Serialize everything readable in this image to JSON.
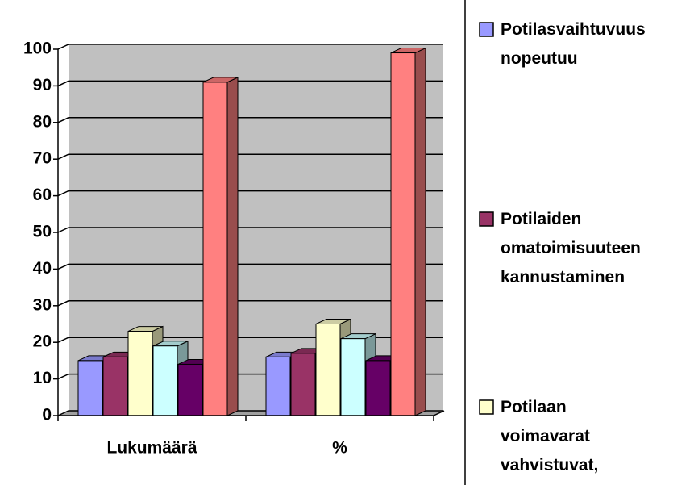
{
  "chart_data": {
    "type": "bar3d",
    "categories": [
      "Lukumäärä",
      "%"
    ],
    "series": [
      {
        "name": "Potilasvaihtuvuus nopeutuu",
        "color": "#9999ff",
        "values": [
          15,
          16
        ]
      },
      {
        "name": "Potilaiden omatoimisuuteen kannustaminen",
        "color": "#993366",
        "values": [
          16,
          17
        ]
      },
      {
        "name": "Potilaan voimavarat vahvistuvat,",
        "color": "#ffffcc",
        "values": [
          23,
          25
        ]
      },
      {
        "color": "#ccffff",
        "values": [
          19,
          21
        ]
      },
      {
        "color": "#660066",
        "values": [
          14,
          15
        ]
      },
      {
        "color": "#ff8080",
        "values": [
          91,
          99
        ]
      }
    ],
    "ylim": [
      0,
      100
    ],
    "yticks": [
      0,
      10,
      20,
      30,
      40,
      50,
      60,
      70,
      80,
      90,
      100
    ],
    "grid": true
  }
}
